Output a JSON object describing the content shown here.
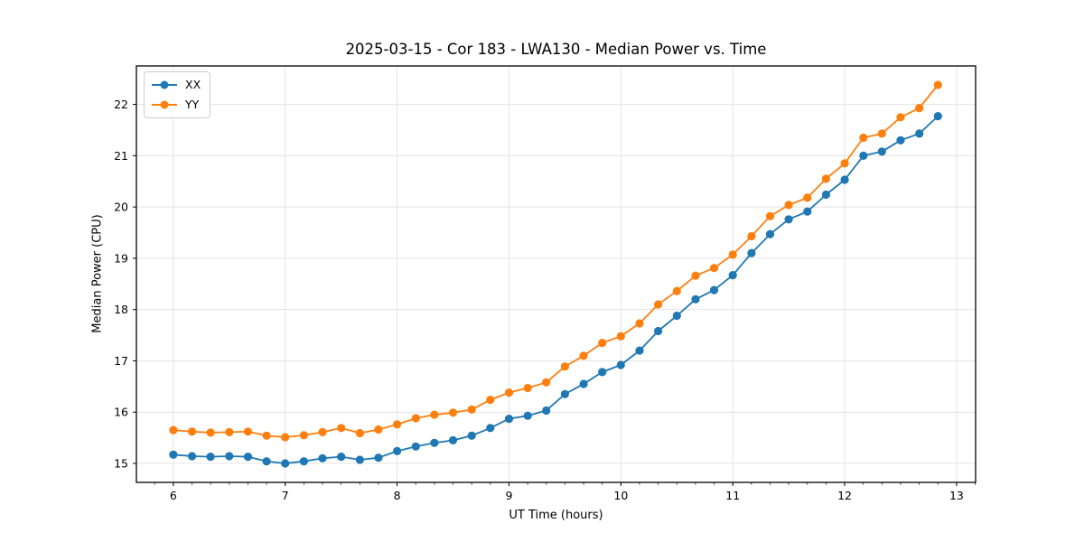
{
  "figure": {
    "title": "2025-03-15 - Cor 183 - LWA130 - Median Power vs. Time"
  },
  "chart_data": {
    "type": "line",
    "title": "2025-03-15 - Cor 183 - LWA130 - Median Power vs. Time",
    "xlabel": "UT Time (hours)",
    "ylabel": "Median Power (CPU)",
    "xlim": [
      5.67,
      13.17
    ],
    "ylim": [
      14.63,
      22.75
    ],
    "xticks": [
      6,
      7,
      8,
      9,
      10,
      11,
      12,
      13
    ],
    "yticks": [
      15,
      16,
      17,
      18,
      19,
      20,
      21,
      22
    ],
    "minor_xtick_interval": 0.1666667,
    "grid": true,
    "legend_position": "upper left",
    "x": [
      6.0,
      6.167,
      6.333,
      6.5,
      6.667,
      6.833,
      7.0,
      7.167,
      7.333,
      7.5,
      7.667,
      7.833,
      8.0,
      8.167,
      8.333,
      8.5,
      8.667,
      8.833,
      9.0,
      9.167,
      9.333,
      9.5,
      9.667,
      9.833,
      10.0,
      10.167,
      10.333,
      10.5,
      10.667,
      10.833,
      11.0,
      11.167,
      11.333,
      11.5,
      11.667,
      11.833,
      12.0,
      12.167,
      12.333,
      12.5,
      12.667,
      12.833
    ],
    "series": [
      {
        "name": "XX",
        "color": "#1f77b4",
        "marker": "circle",
        "values": [
          15.17,
          15.14,
          15.13,
          15.14,
          15.13,
          15.04,
          15.0,
          15.04,
          15.1,
          15.13,
          15.07,
          15.11,
          15.24,
          15.33,
          15.4,
          15.45,
          15.54,
          15.69,
          15.87,
          15.93,
          16.03,
          16.35,
          16.55,
          16.78,
          16.92,
          17.2,
          17.58,
          17.88,
          18.2,
          18.38,
          18.67,
          19.1,
          19.47,
          19.76,
          19.91,
          20.24,
          20.53,
          21.0,
          21.08,
          21.3,
          21.43,
          21.77
        ]
      },
      {
        "name": "YY",
        "color": "#ff7f0e",
        "marker": "circle",
        "values": [
          15.65,
          15.62,
          15.6,
          15.61,
          15.62,
          15.54,
          15.51,
          15.55,
          15.61,
          15.69,
          15.59,
          15.66,
          15.76,
          15.88,
          15.95,
          15.99,
          16.05,
          16.24,
          16.38,
          16.47,
          16.58,
          16.89,
          17.1,
          17.35,
          17.48,
          17.73,
          18.1,
          18.36,
          18.66,
          18.81,
          19.07,
          19.43,
          19.82,
          20.04,
          20.18,
          20.55,
          20.85,
          21.35,
          21.43,
          21.75,
          21.93,
          22.38
        ]
      }
    ],
    "colors": {
      "grid": "#e3e3e3",
      "spine": "#000000",
      "tick": "#000000",
      "text": "#000000",
      "legend_border": "#cccccc",
      "background": "#ffffff"
    }
  }
}
